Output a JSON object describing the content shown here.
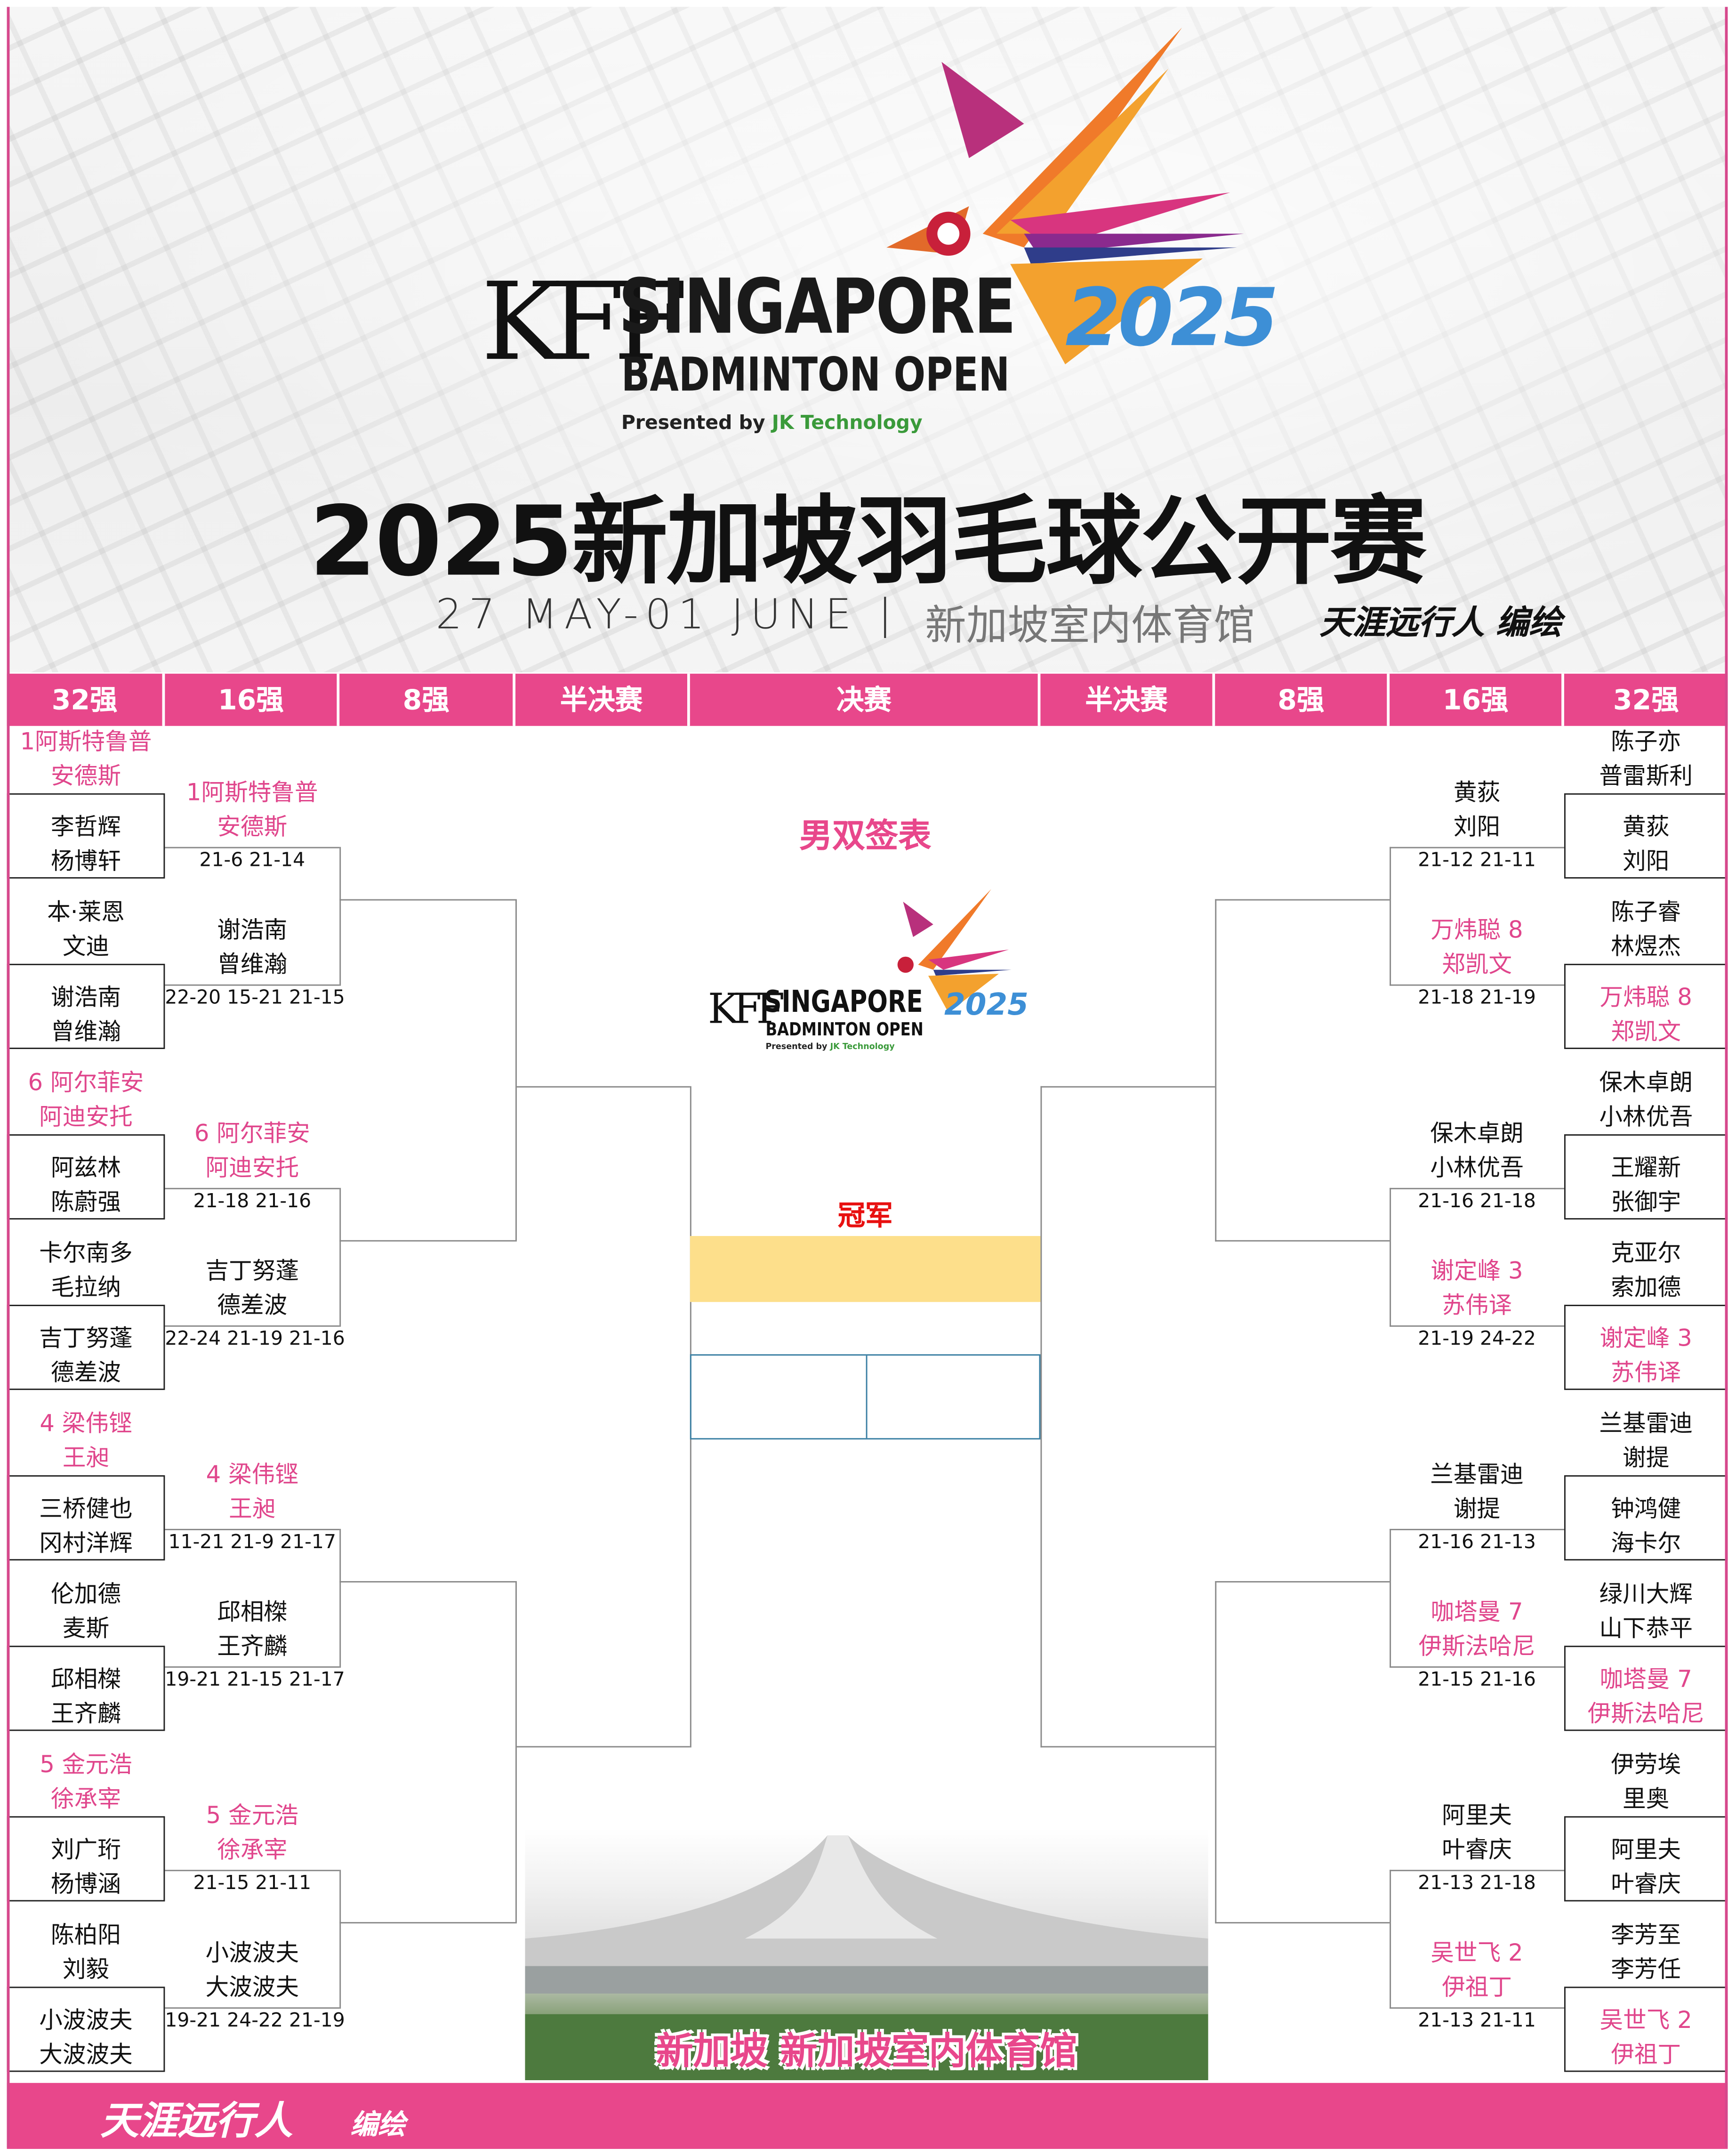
{
  "header": {
    "logo": {
      "mark": "KFF",
      "line1": "SINGAPORE",
      "line2": "BADMINTON OPEN",
      "presented_by": "Presented by",
      "sponsor": "JK Technology",
      "year": "2025"
    },
    "title": "2025新加坡羽毛球公开赛",
    "dates": "27 MAY-01 JUNE |",
    "venue": "新加坡室内体育馆",
    "credit": "天涯远行人  编绘"
  },
  "columns": [
    "32强",
    "16强",
    "8强",
    "半决赛",
    "决赛",
    "半决赛",
    "8强",
    "16强",
    "32强"
  ],
  "center": {
    "title": "男双签表",
    "logo": {
      "mark": "KFF",
      "line1": "SINGAPORE",
      "line2": "BADMINTON OPEN",
      "presented_by": "Presented by",
      "sponsor": "JK Technology",
      "year": "2025"
    },
    "champion_label": "冠军",
    "champion": "",
    "final_left": "",
    "final_right": "",
    "venue_caption": "新加坡  新加坡室内体育馆"
  },
  "left": {
    "r32": [
      {
        "line1": "1阿斯特鲁普",
        "line2": "安德斯",
        "seeded": true
      },
      {
        "line1": "李哲辉",
        "line2": "杨博轩",
        "seeded": false
      },
      {
        "line1": "本·莱恩",
        "line2": "文迪",
        "seeded": false
      },
      {
        "line1": "谢浩南",
        "line2": "曾维瀚",
        "seeded": false
      },
      {
        "line1": "6 阿尔菲安",
        "line2": "阿迪安托",
        "seeded": true
      },
      {
        "line1": "阿兹林",
        "line2": "陈蔚强",
        "seeded": false
      },
      {
        "line1": "卡尔南多",
        "line2": "毛拉纳",
        "seeded": false
      },
      {
        "line1": "吉丁努蓬",
        "line2": "德差波",
        "seeded": false
      },
      {
        "line1": "4 梁伟铿",
        "line2": "王昶",
        "seeded": true
      },
      {
        "line1": "三桥健也",
        "line2": "冈村洋辉",
        "seeded": false
      },
      {
        "line1": "伦加德",
        "line2": "麦斯",
        "seeded": false
      },
      {
        "line1": "邱相榤",
        "line2": "王齐麟",
        "seeded": false
      },
      {
        "line1": "5 金元浩",
        "line2": "徐承宰",
        "seeded": true
      },
      {
        "line1": "刘广珩",
        "line2": "杨博涵",
        "seeded": false
      },
      {
        "line1": "陈柏阳",
        "line2": "刘毅",
        "seeded": false
      },
      {
        "line1": "小波波夫",
        "line2": "大波波夫",
        "seeded": false
      }
    ],
    "r16": [
      {
        "line1": "1阿斯特鲁普",
        "line2": "安德斯",
        "seeded": true,
        "score": "21-6 21-14"
      },
      {
        "line1": "谢浩南",
        "line2": "曾维瀚",
        "seeded": false,
        "score": "22-20 15-21 21-15"
      },
      {
        "line1": "6 阿尔菲安",
        "line2": "阿迪安托",
        "seeded": true,
        "score": "21-18 21-16"
      },
      {
        "line1": "吉丁努蓬",
        "line2": "德差波",
        "seeded": false,
        "score": "22-24 21-19 21-16"
      },
      {
        "line1": "4 梁伟铿",
        "line2": "王昶",
        "seeded": true,
        "score": "11-21 21-9 21-17"
      },
      {
        "line1": "邱相榤",
        "line2": "王齐麟",
        "seeded": false,
        "score": "19-21 21-15 21-17"
      },
      {
        "line1": "5 金元浩",
        "line2": "徐承宰",
        "seeded": true,
        "score": "21-15 21-11"
      },
      {
        "line1": "小波波夫",
        "line2": "大波波夫",
        "seeded": false,
        "score": "19-21 24-22 21-19"
      }
    ]
  },
  "right": {
    "r32": [
      {
        "line1": "陈子亦",
        "line2": "普雷斯利",
        "seeded": false
      },
      {
        "line1": "黄荻",
        "line2": "刘阳",
        "seeded": false
      },
      {
        "line1": "陈子睿",
        "line2": "林煜杰",
        "seeded": false
      },
      {
        "line1": "万炜聪 8",
        "line2": "郑凯文",
        "seeded": true
      },
      {
        "line1": "保木卓朗",
        "line2": "小林优吾",
        "seeded": false
      },
      {
        "line1": "王耀新",
        "line2": "张御宇",
        "seeded": false
      },
      {
        "line1": "克亚尔",
        "line2": "索加德",
        "seeded": false
      },
      {
        "line1": "谢定峰 3",
        "line2": "苏伟译",
        "seeded": true
      },
      {
        "line1": "兰基雷迪",
        "line2": "谢提",
        "seeded": false
      },
      {
        "line1": "钟鸿健",
        "line2": "海卡尔",
        "seeded": false
      },
      {
        "line1": "绿川大辉",
        "line2": "山下恭平",
        "seeded": false
      },
      {
        "line1": "咖塔曼 7",
        "line2": "伊斯法哈尼",
        "seeded": true
      },
      {
        "line1": "伊劳埃",
        "line2": "里奥",
        "seeded": false
      },
      {
        "line1": "阿里夫",
        "line2": "叶睿庆",
        "seeded": false
      },
      {
        "line1": "李芳至",
        "line2": "李芳任",
        "seeded": false
      },
      {
        "line1": "吴世飞 2",
        "line2": "伊祖丁",
        "seeded": true
      }
    ],
    "r16": [
      {
        "line1": "黄荻",
        "line2": "刘阳",
        "seeded": false,
        "score": "21-12 21-11"
      },
      {
        "line1": "万炜聪 8",
        "line2": "郑凯文",
        "seeded": true,
        "score": "21-18 21-19"
      },
      {
        "line1": "保木卓朗",
        "line2": "小林优吾",
        "seeded": false,
        "score": "21-16 21-18"
      },
      {
        "line1": "谢定峰 3",
        "line2": "苏伟译",
        "seeded": true,
        "score": "21-19 24-22"
      },
      {
        "line1": "兰基雷迪",
        "line2": "谢提",
        "seeded": false,
        "score": "21-16 21-13"
      },
      {
        "line1": "咖塔曼 7",
        "line2": "伊斯法哈尼",
        "seeded": true,
        "score": "21-15 21-16"
      },
      {
        "line1": "阿里夫",
        "line2": "叶睿庆",
        "seeded": false,
        "score": "21-13 21-18"
      },
      {
        "line1": "吴世飞 2",
        "line2": "伊祖丁",
        "seeded": true,
        "score": "21-13 21-11"
      }
    ]
  },
  "footer": {
    "author": "天涯远行人",
    "suffix": "编绘"
  },
  "colors": {
    "brand_pink": "#e8478b",
    "seed_text": "#e0468c",
    "champion_label": "#e81010",
    "champion_band": "#fddf8b",
    "final_box_border": "#3a7fa3"
  }
}
